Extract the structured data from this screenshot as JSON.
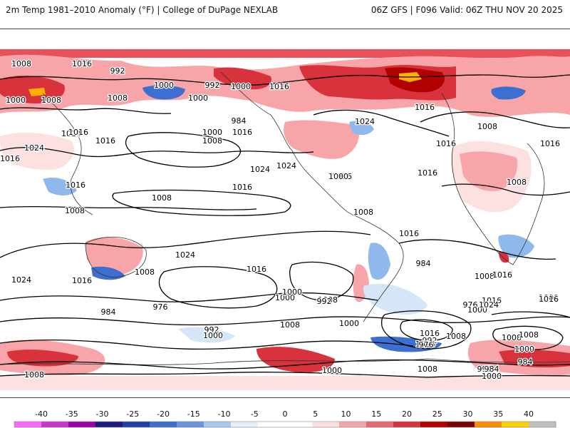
{
  "header": {
    "left_title": "2m Temp 1981–2010 Anomaly (°F) | College of DuPage NEXLAB",
    "right_title": "06Z GFS | F096 Valid: 06Z THU NOV 20 2025"
  },
  "map": {
    "pressure_labels": [
      "1008",
      "1016",
      "992",
      "1000",
      "1008",
      "1000",
      "1000",
      "1016",
      "1024",
      "1016",
      "992",
      "984",
      "1000",
      "1016",
      "1008",
      "1016",
      "1024",
      "1000",
      "1008",
      "1016",
      "1024",
      "1016",
      "1024",
      "1016",
      "1008",
      "1008",
      "1016",
      "1024",
      "1016",
      "1016",
      "1008",
      "1008",
      "1016",
      "1000",
      "1016",
      "1008",
      "984",
      "1008",
      "1024",
      "1016",
      "1008",
      "1000",
      "992",
      "976",
      "1000",
      "984",
      "992",
      "976",
      "1000",
      "1008",
      "1000",
      "992",
      "984",
      "1008",
      "1000",
      "1000",
      "1016",
      "1024",
      "1008",
      "1016",
      "1024",
      "1016",
      "1016",
      "1008",
      "1024",
      "1016",
      "1016",
      "992",
      "1000",
      "1000",
      "1008",
      "976",
      "984",
      "1008",
      "1000",
      "1008"
    ],
    "colors": {
      "strong_warm": "#b00000",
      "warm": "#e03040",
      "mild_warm": "#f7a5a8",
      "slight_warm": "#fde0e0",
      "slight_cool": "#d4e6f7",
      "mild_cool": "#8fb8ec",
      "cool": "#3d6fd0",
      "extreme_warm": "#ffb000",
      "contour": "#000000",
      "coast": "#333333"
    }
  },
  "legend": {
    "ticks": [
      "-40",
      "-35",
      "-30",
      "-25",
      "-20",
      "-15",
      "-10",
      "-5",
      "0",
      "5",
      "10",
      "15",
      "20",
      "25",
      "30",
      "35",
      "40"
    ],
    "colors": [
      "#ff66ff",
      "#cc33cc",
      "#9900aa",
      "#1a1a80",
      "#1f3fa8",
      "#3d6fd0",
      "#6a95e0",
      "#a9c7ef",
      "#e6f0fb",
      "#ffffff",
      "#ffffff",
      "#fde0e0",
      "#f7a5a8",
      "#e86a70",
      "#d8323c",
      "#b00000",
      "#7a0000",
      "#ff8c00",
      "#ffd000",
      "#bfbfbf"
    ]
  }
}
